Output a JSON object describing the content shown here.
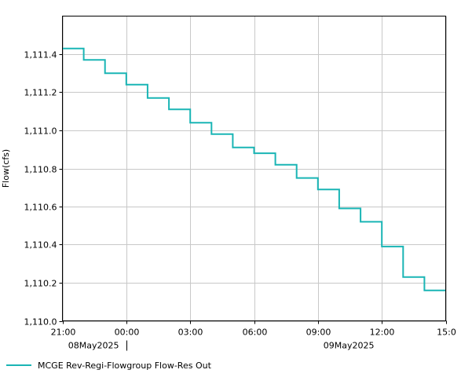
{
  "chart_data": {
    "type": "line",
    "step": true,
    "ylabel": "Flow(cfs)",
    "ylim": [
      1110.0,
      1111.6
    ],
    "yticks": [
      1110.0,
      1110.2,
      1110.4,
      1110.6,
      1110.8,
      1111.0,
      1111.2,
      1111.4
    ],
    "ytick_labels": [
      "1,110.0",
      "1,110.2",
      "1,110.4",
      "1,110.6",
      "1,110.8",
      "1,111.0",
      "1,111.2",
      "1,111.4"
    ],
    "xlim": [
      "2025-05-08 21:00",
      "2025-05-09 15:00"
    ],
    "xticks": [
      "2025-05-08 21:00",
      "2025-05-09 00:00",
      "2025-05-09 03:00",
      "2025-05-09 06:00",
      "2025-05-09 09:00",
      "2025-05-09 12:00",
      "2025-05-09 15:00"
    ],
    "xtick_labels": [
      "21:00",
      "00:00",
      "03:00",
      "06:00",
      "09:00",
      "12:00",
      "15:0"
    ],
    "date_labels": [
      {
        "at": "2025-05-09 00:00",
        "text": "08May2025",
        "separator": true
      },
      {
        "at": "2025-05-09 12:00",
        "text": "09May2025",
        "separator": false
      }
    ],
    "grid": true,
    "legend_position": "bottom-left",
    "series": [
      {
        "name": "MCGE Rev-Regi-Flowgroup Flow-Res Out",
        "color": "#1ab5b5",
        "x": [
          "2025-05-08 21:00",
          "2025-05-08 22:00",
          "2025-05-08 23:00",
          "2025-05-09 00:00",
          "2025-05-09 01:00",
          "2025-05-09 02:00",
          "2025-05-09 03:00",
          "2025-05-09 04:00",
          "2025-05-09 05:00",
          "2025-05-09 06:00",
          "2025-05-09 07:00",
          "2025-05-09 08:00",
          "2025-05-09 09:00",
          "2025-05-09 10:00",
          "2025-05-09 11:00",
          "2025-05-09 12:00",
          "2025-05-09 13:00",
          "2025-05-09 14:00"
        ],
        "values": [
          1111.43,
          1111.37,
          1111.3,
          1111.24,
          1111.17,
          1111.11,
          1111.04,
          1110.98,
          1110.91,
          1110.88,
          1110.82,
          1110.75,
          1110.69,
          1110.59,
          1110.52,
          1110.39,
          1110.23,
          1110.16
        ]
      }
    ]
  }
}
